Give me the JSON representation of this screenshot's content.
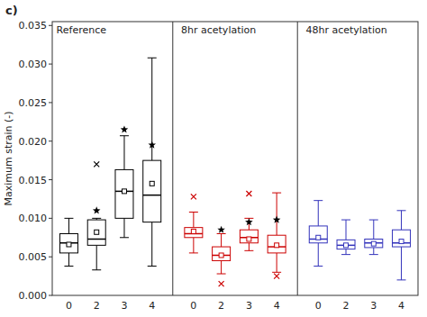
{
  "chart_data": {
    "type": "box",
    "title": "c)",
    "ylabel": "Maximum strain (-)",
    "ylim": [
      0.0,
      0.0355
    ],
    "yticks": [
      {
        "value": 0.0,
        "label": "0.000"
      },
      {
        "value": 0.005,
        "label": "0.005"
      },
      {
        "value": 0.01,
        "label": "0.010"
      },
      {
        "value": 0.015,
        "label": "0.015"
      },
      {
        "value": 0.02,
        "label": "0.020"
      },
      {
        "value": 0.025,
        "label": "0.025"
      },
      {
        "value": 0.03,
        "label": "0.030"
      },
      {
        "value": 0.035,
        "label": "0.035"
      }
    ],
    "categories": [
      "0",
      "2",
      "3",
      "4"
    ],
    "series": [
      {
        "name": "Reference",
        "color": "#000000",
        "boxes": [
          {
            "whislo": 0.0038,
            "q1": 0.0055,
            "med": 0.0068,
            "q3": 0.008,
            "whishi": 0.01,
            "mean": 0.0066,
            "fliers_x": [],
            "fliers_star": []
          },
          {
            "whislo": 0.0033,
            "q1": 0.0065,
            "med": 0.0073,
            "q3": 0.0098,
            "whishi": 0.01,
            "mean": 0.0082,
            "fliers_x": [
              0.017
            ],
            "fliers_star": [
              0.011
            ]
          },
          {
            "whislo": 0.0075,
            "q1": 0.01,
            "med": 0.0135,
            "q3": 0.0163,
            "whishi": 0.0207,
            "mean": 0.0135,
            "fliers_x": [],
            "fliers_star": [
              0.0215
            ]
          },
          {
            "whislo": 0.0038,
            "q1": 0.0095,
            "med": 0.013,
            "q3": 0.0175,
            "whishi": 0.0308,
            "mean": 0.0145,
            "fliers_x": [],
            "fliers_star": [
              0.0195
            ]
          }
        ]
      },
      {
        "name": "8hr acetylation",
        "color": "#cc0000",
        "boxes": [
          {
            "whislo": 0.0055,
            "q1": 0.0075,
            "med": 0.008,
            "q3": 0.0088,
            "whishi": 0.0108,
            "mean": 0.0083,
            "fliers_x": [
              0.0128
            ],
            "fliers_star": []
          },
          {
            "whislo": 0.0028,
            "q1": 0.0045,
            "med": 0.0052,
            "q3": 0.0063,
            "whishi": 0.008,
            "mean": 0.0052,
            "fliers_x": [
              0.0015
            ],
            "fliers_star": [
              0.0085
            ]
          },
          {
            "whislo": 0.0058,
            "q1": 0.0068,
            "med": 0.0075,
            "q3": 0.0085,
            "whishi": 0.01,
            "mean": 0.0073,
            "fliers_x": [
              0.0132
            ],
            "fliers_star": [
              0.0095
            ]
          },
          {
            "whislo": 0.003,
            "q1": 0.0055,
            "med": 0.0063,
            "q3": 0.0078,
            "whishi": 0.0133,
            "mean": 0.0065,
            "fliers_x": [
              0.0025
            ],
            "fliers_star": [
              0.0098
            ]
          }
        ]
      },
      {
        "name": "48hr acetylation",
        "color": "#3333bb",
        "boxes": [
          {
            "whislo": 0.0038,
            "q1": 0.0068,
            "med": 0.0073,
            "q3": 0.009,
            "whishi": 0.0123,
            "mean": 0.0075,
            "fliers_x": [],
            "fliers_star": []
          },
          {
            "whislo": 0.0053,
            "q1": 0.006,
            "med": 0.0065,
            "q3": 0.0072,
            "whishi": 0.0098,
            "mean": 0.0065,
            "fliers_x": [],
            "fliers_star": []
          },
          {
            "whislo": 0.0053,
            "q1": 0.0062,
            "med": 0.0068,
            "q3": 0.0073,
            "whishi": 0.0098,
            "mean": 0.0067,
            "fliers_x": [],
            "fliers_star": []
          },
          {
            "whislo": 0.002,
            "q1": 0.0063,
            "med": 0.0068,
            "q3": 0.0085,
            "whishi": 0.011,
            "mean": 0.007,
            "fliers_x": [],
            "fliers_star": []
          }
        ]
      }
    ]
  }
}
